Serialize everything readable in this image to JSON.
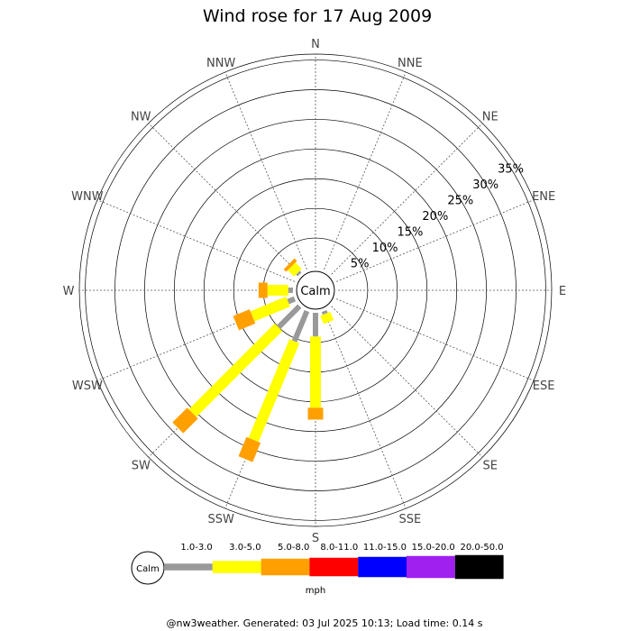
{
  "chart_data": {
    "type": "wind-rose",
    "title": "Wind rose for 17 Aug 2009",
    "calm_label": "Calm",
    "directions": [
      "N",
      "NNE",
      "NE",
      "ENE",
      "E",
      "ESE",
      "SE",
      "SSE",
      "S",
      "SSW",
      "SW",
      "WSW",
      "W",
      "WNW",
      "NW",
      "NNW"
    ],
    "rings": [
      {
        "value": 5,
        "label": "5%"
      },
      {
        "value": 10,
        "label": "10%"
      },
      {
        "value": 15,
        "label": "15%"
      },
      {
        "value": 20,
        "label": "20%"
      },
      {
        "value": 25,
        "label": "25%"
      },
      {
        "value": 30,
        "label": "30%"
      },
      {
        "value": 35,
        "label": "35%"
      }
    ],
    "rmax": 36,
    "unit": "mph",
    "series": [
      {
        "name": "1.0-3.0",
        "color": "#999999"
      },
      {
        "name": "3.0-5.0",
        "color": "#ffff00"
      },
      {
        "name": "5.0-8.0",
        "color": "#ffa000"
      },
      {
        "name": "8.0-11.0",
        "color": "#ff0000"
      },
      {
        "name": "11.0-15.0",
        "color": "#0000ff"
      },
      {
        "name": "15.0-20.0",
        "color": "#a020f0"
      },
      {
        "name": "20.0-50.0",
        "color": "#000000"
      }
    ],
    "stacks": [
      {
        "direction": "NW",
        "values": [
          0.4,
          1.5,
          0.6,
          0,
          0,
          0,
          0
        ]
      },
      {
        "direction": "W",
        "values": [
          0.8,
          3.5,
          1.5,
          0,
          0,
          0,
          0
        ]
      },
      {
        "direction": "WSW",
        "values": [
          1.2,
          6.5,
          3.0,
          0,
          0,
          0,
          0
        ]
      },
      {
        "direction": "SW",
        "values": [
          5.0,
          20.5,
          3.5,
          0,
          0,
          0,
          0
        ]
      },
      {
        "direction": "SSW",
        "values": [
          5.5,
          18.0,
          3.5,
          0,
          0,
          0,
          0
        ]
      },
      {
        "direction": "S",
        "values": [
          4.0,
          12.0,
          2.0,
          0,
          0,
          0,
          0
        ]
      },
      {
        "direction": "SSE",
        "values": [
          0.5,
          1.5,
          0,
          0,
          0,
          0,
          0
        ]
      }
    ]
  },
  "footer": "@nw3weather. Generated: 03 Jul 2025 10:13; Load time: 0.14 s"
}
